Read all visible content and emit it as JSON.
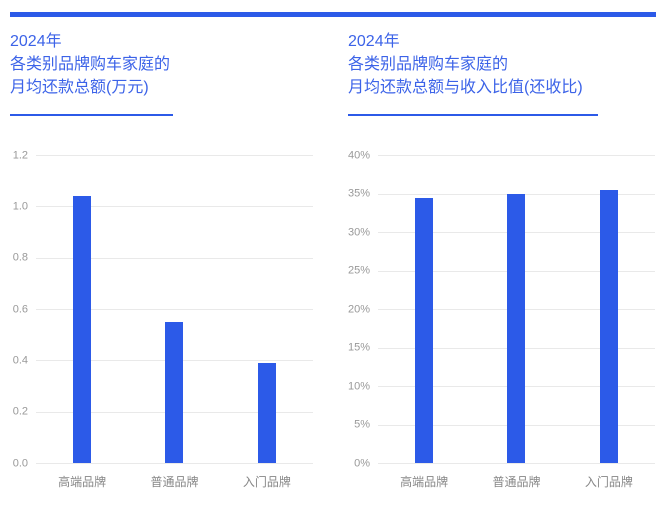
{
  "page": {
    "accent_color": "#2c5ae8",
    "title_color": "#3c63e8",
    "bar_color": "#2c5ae8"
  },
  "chart_data": [
    {
      "type": "bar",
      "title": "2024年各类别品牌购车家庭的月均还款总额(万元)",
      "title_lines": [
        "2024年",
        "各类别品牌购车家庭的",
        "月均还款总额(万元)"
      ],
      "categories": [
        "高端品牌",
        "普通品牌",
        "入门品牌"
      ],
      "values": [
        1.04,
        0.55,
        0.39
      ],
      "xlabel": "",
      "ylabel": "",
      "ylim": [
        0,
        1.2
      ],
      "yticks": [
        0,
        0.2,
        0.4,
        0.6,
        0.8,
        1.0,
        1.2
      ],
      "ytick_labels": [
        "0.0",
        "0.2",
        "0.4",
        "0.6",
        "0.8",
        "1.0",
        "1.2"
      ],
      "grid": true,
      "legend": false,
      "bar_color": "#2c5ae8"
    },
    {
      "type": "bar",
      "title": "2024年各类别品牌购车家庭的月均还款总额与收入比值(还收比)",
      "title_lines": [
        "2024年",
        "各类别品牌购车家庭的",
        "月均还款总额与收入比值(还收比)"
      ],
      "categories": [
        "高端品牌",
        "普通品牌",
        "入门品牌"
      ],
      "values": [
        34.4,
        34.9,
        35.5
      ],
      "xlabel": "",
      "ylabel": "",
      "ylim": [
        0,
        40
      ],
      "yticks": [
        0,
        5,
        10,
        15,
        20,
        25,
        30,
        35,
        40
      ],
      "ytick_labels": [
        "0%",
        "5%",
        "10%",
        "15%",
        "20%",
        "25%",
        "30%",
        "35%",
        "40%"
      ],
      "grid": true,
      "legend": false,
      "bar_color": "#2c5ae8"
    }
  ]
}
